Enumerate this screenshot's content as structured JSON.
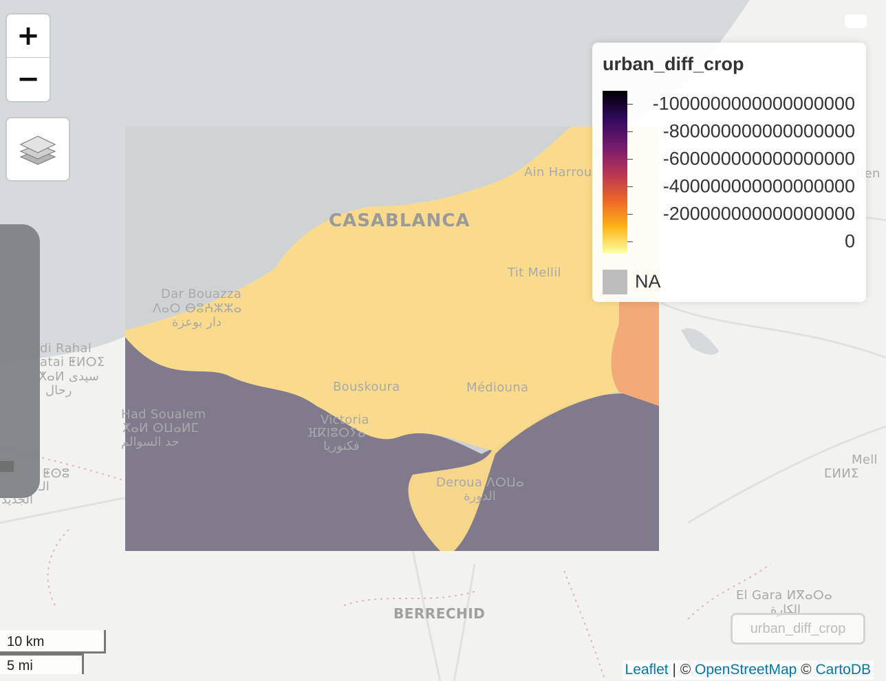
{
  "map": {
    "places": [
      {
        "id": "casablanca",
        "text": "CASABLANCA"
      },
      {
        "id": "ain-harrouda",
        "text": "Ain Harrou"
      },
      {
        "id": "tit-mellil",
        "text": "Tit Mellil"
      },
      {
        "id": "dar-bouazza",
        "text": "Dar Bouazza"
      },
      {
        "id": "dar-bouazza-tfng",
        "text": "ⴷⴰⵔ ⴱⵓⵄⵣⵣⴰ"
      },
      {
        "id": "dar-bouazza-ar",
        "text": "دار بوعزة"
      },
      {
        "id": "sidi-rahal",
        "text": "di Rahal"
      },
      {
        "id": "sidi-rahal-tfng",
        "text": "atai ⵟⵍⵔⵉ"
      },
      {
        "id": "sidi-rahal-ar",
        "text": "ⵅⴰⵍ سيدى"
      },
      {
        "id": "sidi-rahal-ar2",
        "text": "رحال"
      },
      {
        "id": "bouskoura",
        "text": "Bouskoura"
      },
      {
        "id": "mediouna",
        "text": "Médiouna"
      },
      {
        "id": "had-soualem",
        "text": "Had Soualem"
      },
      {
        "id": "had-soualem-tfng",
        "text": "ⵅⴰⵍ ⵙⵡⴰⵍⵎ"
      },
      {
        "id": "had-soualem-ar",
        "text": "حد السوالم"
      },
      {
        "id": "victoria",
        "text": "Victoria"
      },
      {
        "id": "victoria-tfng",
        "text": "ⴼⴽⵏⵓⵔⵢⴰ"
      },
      {
        "id": "victoria-ar",
        "text": "فكنوريا"
      },
      {
        "id": "deroua",
        "text": "Deroua ⴷⵔⵡⴰ"
      },
      {
        "id": "deroua-ar",
        "text": "الدورة"
      },
      {
        "id": "berrechid",
        "text": "BERRECHID"
      },
      {
        "id": "el-gara",
        "text": "El Gara ⵍⴳⴰⵔⴰ"
      },
      {
        "id": "el-gara-ar",
        "text": "الكارة"
      },
      {
        "id": "mell",
        "text": "Mell"
      },
      {
        "id": "mell-tfng",
        "text": "ⵎⵍⵍⵉ"
      },
      {
        "id": "left-tfng",
        "text": "ⵟⵙⵓ"
      },
      {
        "id": "left-ar",
        "text": "الجديد"
      },
      {
        "id": "left-ar2",
        "text": "الـ"
      },
      {
        "id": "right-ben",
        "text": "Ben"
      }
    ],
    "colors": {
      "sea": "#d6dadc",
      "land": "#f2f2f0",
      "raster_high": "#fcdb8a",
      "raster_low": "#807a8c",
      "raster_mid": "#f3a978",
      "raster_na": "#c9cbcd"
    }
  },
  "controls": {
    "zoom_in": "+",
    "zoom_out": "−",
    "layers_icon": "layers-icon"
  },
  "legend": {
    "title": "urban_diff_crop",
    "labels": [
      "-1000000000000000000",
      "-800000000000000000",
      "-600000000000000000",
      "-400000000000000000",
      "-200000000000000000",
      "0"
    ],
    "na_label": "NA",
    "palette": "inferno"
  },
  "scale": {
    "km": "10 km",
    "mi": "5 mi"
  },
  "layer_toggle": "urban_diff_crop",
  "attribution": {
    "leaflet": "Leaflet",
    "sep1": " | © ",
    "osm": "OpenStreetMap",
    "sep2": " © ",
    "carto": "CartoDB"
  }
}
